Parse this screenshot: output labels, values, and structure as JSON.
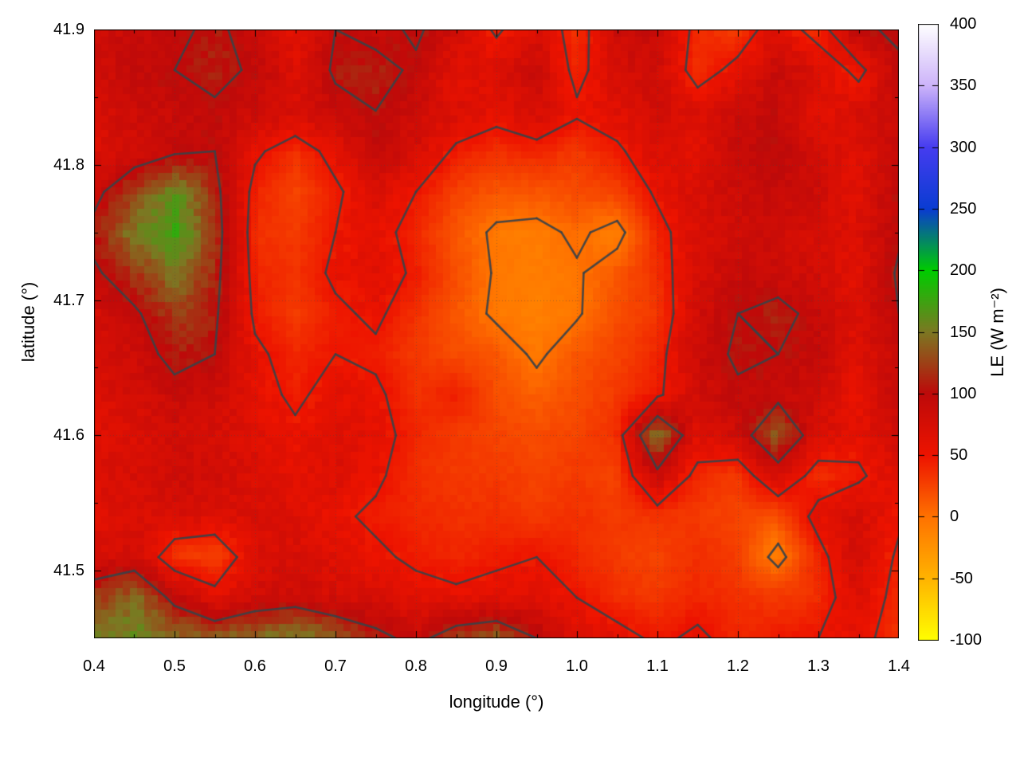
{
  "chart_data": {
    "type": "heatmap",
    "xlabel": "longitude (°)",
    "ylabel": "latitude (°)",
    "colorbar_label": "LE (W m⁻²)",
    "x_range": [
      0.4,
      1.4
    ],
    "y_range": [
      41.45,
      41.9
    ],
    "z_range": [
      -100,
      400
    ],
    "grid_on": true,
    "x_ticks": [
      {
        "v": 0.4,
        "label": "0.4"
      },
      {
        "v": 0.5,
        "label": "0.5"
      },
      {
        "v": 0.6,
        "label": "0.6"
      },
      {
        "v": 0.7,
        "label": "0.7"
      },
      {
        "v": 0.8,
        "label": "0.8"
      },
      {
        "v": 0.9,
        "label": "0.9"
      },
      {
        "v": 1.0,
        "label": "1.0"
      },
      {
        "v": 1.1,
        "label": "1.1"
      },
      {
        "v": 1.2,
        "label": "1.2"
      },
      {
        "v": 1.3,
        "label": "1.3"
      },
      {
        "v": 1.4,
        "label": "1.4"
      }
    ],
    "x_minor_step": 0.05,
    "y_ticks": [
      {
        "v": 41.9,
        "label": "41.9"
      },
      {
        "v": 41.8,
        "label": "41.8"
      },
      {
        "v": 41.7,
        "label": "41.7"
      },
      {
        "v": 41.6,
        "label": "41.6"
      },
      {
        "v": 41.5,
        "label": "41.5"
      }
    ],
    "y_minor_step": 0.05,
    "colorbar_ticks": [
      {
        "v": 400,
        "label": "400"
      },
      {
        "v": 350,
        "label": "350"
      },
      {
        "v": 300,
        "label": "300"
      },
      {
        "v": 250,
        "label": "250"
      },
      {
        "v": 200,
        "label": "200"
      },
      {
        "v": 150,
        "label": "150"
      },
      {
        "v": 100,
        "label": "100"
      },
      {
        "v": 50,
        "label": "50"
      },
      {
        "v": 0,
        "label": "0"
      },
      {
        "v": -50,
        "label": "-50"
      },
      {
        "v": -100,
        "label": "-100"
      }
    ],
    "palette": [
      [
        -100,
        "#ffff00"
      ],
      [
        -50,
        "#ffb400"
      ],
      [
        0,
        "#ff7300"
      ],
      [
        50,
        "#ee1400"
      ],
      [
        100,
        "#be0a0a"
      ],
      [
        150,
        "#7d7823"
      ],
      [
        200,
        "#00cd00"
      ],
      [
        250,
        "#0a3cd2"
      ],
      [
        300,
        "#463cf0"
      ],
      [
        350,
        "#cdb4fa"
      ],
      [
        400,
        "#ffffff"
      ]
    ],
    "contour_levels": [
      0,
      50,
      100
    ],
    "contour_color": "#3b4248",
    "grid": {
      "lon": [
        0.4,
        0.45,
        0.5,
        0.55,
        0.6,
        0.65,
        0.7,
        0.75,
        0.8,
        0.85,
        0.9,
        0.95,
        1.0,
        1.05,
        1.1,
        1.15,
        1.2,
        1.25,
        1.3,
        1.35,
        1.4
      ],
      "lat": [
        41.9,
        41.87,
        41.84,
        41.81,
        41.78,
        41.75,
        41.72,
        41.69,
        41.66,
        41.63,
        41.6,
        41.57,
        41.54,
        41.51,
        41.48,
        41.45
      ],
      "values": [
        [
          85,
          90,
          95,
          105,
          90,
          60,
          100,
          90,
          105,
          80,
          45,
          75,
          35,
          85,
          90,
          40,
          30,
          70,
          35,
          95,
          105
        ],
        [
          80,
          95,
          100,
          110,
          95,
          70,
          105,
          110,
          95,
          60,
          70,
          90,
          40,
          75,
          85,
          35,
          60,
          90,
          75,
          40,
          95
        ],
        [
          75,
          85,
          90,
          95,
          85,
          75,
          90,
          100,
          85,
          70,
          60,
          75,
          55,
          65,
          80,
          70,
          85,
          95,
          60,
          75,
          90
        ],
        [
          70,
          80,
          95,
          100,
          55,
          35,
          60,
          95,
          75,
          45,
          35,
          40,
          30,
          45,
          70,
          60,
          90,
          100,
          80,
          65,
          85
        ],
        [
          90,
          130,
          165,
          110,
          40,
          25,
          45,
          70,
          50,
          25,
          15,
          15,
          20,
          25,
          55,
          75,
          85,
          90,
          85,
          60,
          100
        ],
        [
          110,
          155,
          175,
          115,
          35,
          30,
          50,
          60,
          40,
          15,
          -5,
          -8,
          5,
          -10,
          40,
          70,
          80,
          85,
          75,
          70,
          95
        ],
        [
          95,
          120,
          150,
          110,
          40,
          35,
          55,
          65,
          45,
          20,
          -3,
          -8,
          -3,
          15,
          35,
          75,
          90,
          85,
          80,
          60,
          105
        ],
        [
          80,
          95,
          125,
          105,
          45,
          30,
          45,
          55,
          35,
          15,
          -5,
          -10,
          -3,
          20,
          30,
          80,
          100,
          110,
          90,
          70,
          100
        ],
        [
          75,
          85,
          110,
          100,
          55,
          40,
          50,
          45,
          30,
          20,
          15,
          -5,
          15,
          25,
          40,
          85,
          105,
          100,
          95,
          65,
          90
        ],
        [
          70,
          80,
          90,
          85,
          60,
          45,
          60,
          55,
          35,
          45,
          20,
          10,
          20,
          30,
          45,
          80,
          95,
          90,
          85,
          55,
          95
        ],
        [
          65,
          70,
          80,
          75,
          65,
          55,
          65,
          60,
          40,
          30,
          25,
          20,
          25,
          35,
          150,
          70,
          80,
          140,
          75,
          60,
          80
        ],
        [
          70,
          75,
          85,
          80,
          70,
          60,
          70,
          55,
          35,
          30,
          30,
          25,
          30,
          25,
          90,
          40,
          30,
          80,
          35,
          45,
          70
        ],
        [
          65,
          70,
          75,
          70,
          75,
          65,
          55,
          45,
          40,
          35,
          35,
          30,
          35,
          30,
          35,
          30,
          25,
          20,
          60,
          75,
          55
        ],
        [
          75,
          80,
          30,
          25,
          70,
          75,
          65,
          55,
          45,
          40,
          45,
          50,
          40,
          30,
          25,
          35,
          30,
          -10,
          40,
          80,
          45
        ],
        [
          120,
          140,
          90,
          60,
          80,
          85,
          75,
          70,
          60,
          55,
          60,
          65,
          50,
          35,
          30,
          40,
          35,
          30,
          35,
          70,
          40
        ],
        [
          150,
          160,
          140,
          130,
          140,
          150,
          130,
          110,
          90,
          120,
          130,
          100,
          70,
          60,
          45,
          55,
          40,
          45,
          50,
          60,
          35
        ]
      ]
    }
  }
}
